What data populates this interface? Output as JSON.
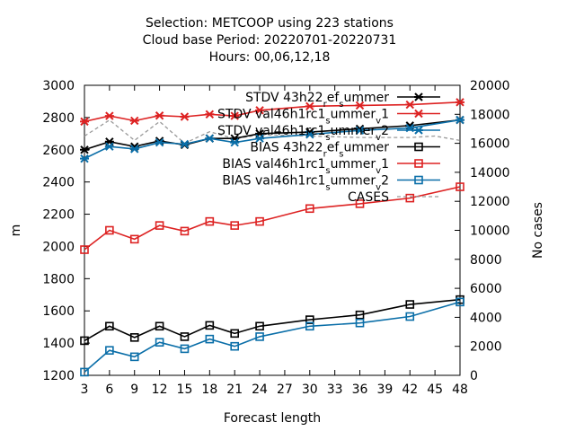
{
  "chart_data": {
    "type": "line",
    "title": [
      "Selection: METCOOP using   223 stations",
      "Cloud base   Period: 20220701-20220731",
      "Hours: 00,06,12,18"
    ],
    "xlabel": "Forecast length",
    "ylabel": "m",
    "y2label": "No cases",
    "xlim": [
      3,
      48
    ],
    "ylim": [
      1200,
      3000
    ],
    "y2lim": [
      0,
      20000
    ],
    "xticks": [
      3,
      6,
      9,
      12,
      15,
      18,
      21,
      24,
      27,
      30,
      33,
      36,
      39,
      42,
      45,
      48
    ],
    "yticks": [
      1200,
      1400,
      1600,
      1800,
      2000,
      2200,
      2400,
      2600,
      2800,
      3000
    ],
    "y2ticks": [
      0,
      2000,
      4000,
      6000,
      8000,
      10000,
      12000,
      14000,
      16000,
      18000,
      20000
    ],
    "grid": false,
    "legend_position": "top-right",
    "series": [
      {
        "name": "STDV 43h22_ref_summer",
        "color": "#000000",
        "marker": "cross",
        "axis": "left",
        "x": [
          3,
          6,
          9,
          12,
          15,
          18,
          21,
          24,
          30,
          36,
          42,
          48
        ],
        "values": [
          2600,
          2650,
          2620,
          2655,
          2630,
          2670,
          2670,
          2700,
          2710,
          2730,
          2750,
          2785
        ]
      },
      {
        "name": "STDV val46h1rc1_summer_v1",
        "color": "#dd2222",
        "marker": "cross",
        "axis": "left",
        "x": [
          3,
          6,
          9,
          12,
          15,
          18,
          21,
          24,
          30,
          36,
          42,
          48
        ],
        "values": [
          2775,
          2810,
          2780,
          2812,
          2805,
          2820,
          2810,
          2845,
          2870,
          2875,
          2880,
          2895
        ]
      },
      {
        "name": "STDV val46h1rc1_summer_v2",
        "color": "#0a6ea8",
        "marker": "cross",
        "axis": "left",
        "x": [
          3,
          6,
          9,
          12,
          15,
          18,
          21,
          24,
          30,
          36,
          42,
          48
        ],
        "values": [
          2545,
          2620,
          2605,
          2645,
          2635,
          2670,
          2645,
          2670,
          2695,
          2720,
          2735,
          2785
        ]
      },
      {
        "name": "BIAS 43h22_ref_summer",
        "color": "#000000",
        "marker": "square",
        "axis": "left",
        "x": [
          3,
          6,
          9,
          12,
          15,
          18,
          21,
          24,
          30,
          36,
          42,
          48
        ],
        "values": [
          1415,
          1505,
          1435,
          1505,
          1440,
          1510,
          1460,
          1505,
          1545,
          1575,
          1640,
          1670
        ]
      },
      {
        "name": "BIAS val46h1rc1_summer_v1",
        "color": "#dd2222",
        "marker": "square",
        "axis": "left",
        "x": [
          3,
          6,
          9,
          12,
          15,
          18,
          21,
          24,
          30,
          36,
          42,
          48
        ],
        "values": [
          1980,
          2100,
          2045,
          2130,
          2095,
          2155,
          2130,
          2155,
          2235,
          2265,
          2300,
          2370
        ]
      },
      {
        "name": "BIAS val46h1rc1_summer_v2",
        "color": "#0a6ea8",
        "marker": "square",
        "axis": "left",
        "x": [
          3,
          6,
          9,
          12,
          15,
          18,
          21,
          24,
          30,
          36,
          42,
          48
        ],
        "values": [
          1220,
          1355,
          1315,
          1405,
          1365,
          1425,
          1380,
          1440,
          1505,
          1525,
          1565,
          1655
        ]
      },
      {
        "name": "CASES",
        "color": "#999999",
        "dashed": true,
        "axis": "right",
        "x": [
          3,
          6,
          9,
          12,
          15,
          18,
          21,
          24,
          30,
          36,
          42,
          45,
          48
        ],
        "values": [
          16500,
          17600,
          16200,
          17500,
          16000,
          16800,
          16300,
          16600,
          16500,
          16400,
          16400,
          16500,
          16200
        ]
      }
    ],
    "legend": [
      {
        "text": "STDV 43h22",
        "sub": "r",
        "mid": "ef",
        "sub2": "s",
        "end": "ummer"
      },
      {
        "text": "STDV val46h1rc1",
        "sub": "s",
        "mid": "ummer",
        "sub2": "v",
        "end": "1"
      },
      {
        "text": "STDV val46h1rc1",
        "sub": "s",
        "mid": "ummer",
        "sub2": "v",
        "end": "2"
      },
      {
        "text": "BIAS 43h22",
        "sub": "r",
        "mid": "ef",
        "sub2": "s",
        "end": "ummer"
      },
      {
        "text": "BIAS val46h1rc1",
        "sub": "s",
        "mid": "ummer",
        "sub2": "v",
        "end": "1"
      },
      {
        "text": "BIAS val46h1rc1",
        "sub": "s",
        "mid": "ummer",
        "sub2": "v",
        "end": "2"
      },
      {
        "text": "CASES",
        "sub": "",
        "mid": "",
        "sub2": "",
        "end": ""
      }
    ]
  }
}
